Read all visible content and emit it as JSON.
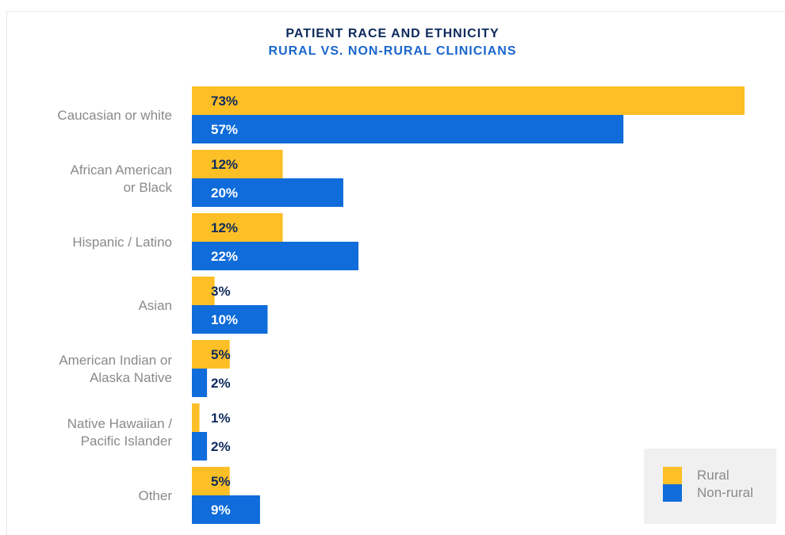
{
  "chart_data": {
    "type": "bar",
    "orientation": "horizontal",
    "title": "PATIENT RACE AND ETHNICITY",
    "subtitle": "RURAL VS. NON-RURAL CLINICIANS",
    "categories": [
      [
        "Caucasian or white"
      ],
      [
        "African American",
        "or Black"
      ],
      [
        "Hispanic / Latino"
      ],
      [
        "Asian"
      ],
      [
        "American Indian or",
        "Alaska Native"
      ],
      [
        "Native Hawaiian /",
        "Pacific Islander"
      ],
      [
        "Other"
      ]
    ],
    "series": [
      {
        "name": "Rural",
        "color": "#fdbf26",
        "values": [
          73,
          12,
          12,
          3,
          5,
          1,
          5
        ],
        "labels": [
          "73%",
          "12%",
          "12%",
          "3%",
          "5%",
          "1%",
          "5%"
        ]
      },
      {
        "name": "Non-rural",
        "color": "#0f6cda",
        "values": [
          57,
          20,
          22,
          10,
          2,
          2,
          9
        ],
        "labels": [
          "57%",
          "20%",
          "22%",
          "10%",
          "2%",
          "2%",
          "9%"
        ]
      }
    ],
    "value_unit": "%",
    "xlim": [
      0,
      73
    ],
    "grid": false,
    "legend_position": "bottom-right"
  },
  "colors": {
    "title": "#0d2a5c",
    "subtitle": "#1a66cc",
    "category_label": "#8a8a8a",
    "label_on_blue": "#ffffff",
    "label_dark": "#0d2a5c"
  }
}
